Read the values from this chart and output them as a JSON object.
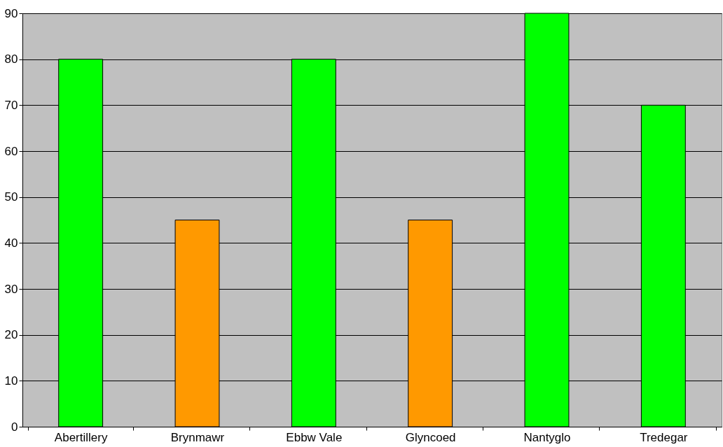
{
  "chart_data": {
    "type": "bar",
    "categories": [
      "Abertillery",
      "Brynmawr",
      "Ebbw Vale",
      "Glyncoed",
      "Nantyglo",
      "Tredegar"
    ],
    "values": [
      80,
      45,
      80,
      45,
      90,
      70
    ],
    "colors": [
      "#00ff00",
      "#ff9900",
      "#00ff00",
      "#ff9900",
      "#00ff00",
      "#00ff00"
    ],
    "ylim": [
      0,
      90
    ],
    "yticks": [
      0,
      10,
      20,
      30,
      40,
      50,
      60,
      70,
      80,
      90
    ],
    "grid": "y"
  }
}
